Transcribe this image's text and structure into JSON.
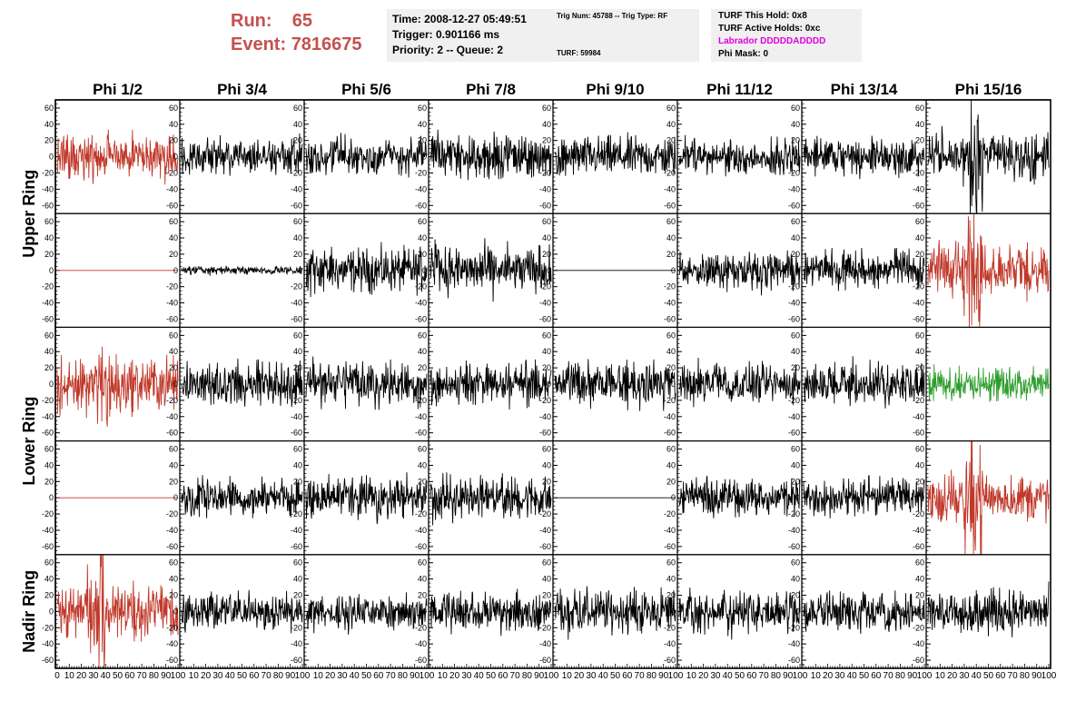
{
  "header": {
    "run_label": "Run:",
    "run_value": "65",
    "event_label": "Event:",
    "event_value": "7816675",
    "accent_color": "#c4504f"
  },
  "info": {
    "time": "Time: 2008-12-27 05:49:51",
    "trigger": "Trigger: 0.901166 ms",
    "priority": "Priority: 2 -- Queue: 2",
    "trig_num": "Trig Num: 45788 -- Trig Type: RF",
    "turf": "TURF: 59984",
    "turf_this_hold": "TURF This Hold: 0x8",
    "turf_active_holds": "TURF Active Holds: 0xc",
    "labrador": "Labrador DDDDDADDDD",
    "phi_mask": "Phi Mask: 0"
  },
  "chart_data": {
    "type": "line",
    "columns": [
      "Phi 1/2",
      "Phi 3/4",
      "Phi 5/6",
      "Phi 7/8",
      "Phi 9/10",
      "Phi 11/12",
      "Phi 13/14",
      "Phi 15/16"
    ],
    "ring_labels": [
      "Upper Ring",
      "Lower Ring",
      "Nadir Ring"
    ],
    "ylim": [
      -70,
      70
    ],
    "xlim": [
      0,
      100
    ],
    "y_ticks": [
      -60,
      -40,
      -20,
      0,
      20,
      40,
      60
    ],
    "x_ticks": [
      0,
      10,
      20,
      30,
      40,
      50,
      60,
      70,
      80,
      90,
      100
    ],
    "colors": {
      "red": "#c0392b",
      "green": "#2e9d2e",
      "black": "#000000"
    },
    "rows": [
      {
        "ring": "Upper Ring",
        "panels": [
          {
            "color": "red",
            "amp": 14,
            "seed": 11
          },
          {
            "color": "black",
            "amp": 11,
            "seed": 12
          },
          {
            "color": "black",
            "amp": 11,
            "seed": 13
          },
          {
            "color": "black",
            "amp": 13,
            "seed": 14
          },
          {
            "color": "black",
            "amp": 12,
            "seed": 15
          },
          {
            "color": "black",
            "amp": 11,
            "seed": 16
          },
          {
            "color": "black",
            "amp": 11,
            "seed": 17
          },
          {
            "color": "black",
            "amp": 15,
            "seed": 18,
            "burst": [
              35,
              45,
              2.2
            ]
          }
        ]
      },
      {
        "ring": "Upper Ring",
        "panels": [
          {
            "color": "red",
            "amp": 0,
            "seed": 21,
            "flat": true
          },
          {
            "color": "black",
            "amp": 2.5,
            "seed": 22
          },
          {
            "color": "black",
            "amp": 13,
            "seed": 23
          },
          {
            "color": "black",
            "amp": 14,
            "seed": 24
          },
          {
            "color": "black",
            "amp": 0,
            "seed": 25,
            "flat": true
          },
          {
            "color": "black",
            "amp": 11,
            "seed": 26
          },
          {
            "color": "black",
            "amp": 11,
            "seed": 27
          },
          {
            "color": "red",
            "amp": 15,
            "seed": 28,
            "burst": [
              30,
              45,
              2.5
            ]
          }
        ]
      },
      {
        "ring": "Lower Ring",
        "panels": [
          {
            "color": "red",
            "amp": 16,
            "seed": 31,
            "burst": [
              30,
              45,
              1.6
            ]
          },
          {
            "color": "black",
            "amp": 13,
            "seed": 32
          },
          {
            "color": "black",
            "amp": 13,
            "seed": 33
          },
          {
            "color": "black",
            "amp": 12,
            "seed": 34
          },
          {
            "color": "black",
            "amp": 13,
            "seed": 35
          },
          {
            "color": "black",
            "amp": 11,
            "seed": 36
          },
          {
            "color": "black",
            "amp": 12,
            "seed": 37
          },
          {
            "color": "green",
            "amp": 10,
            "seed": 38
          }
        ]
      },
      {
        "ring": "Lower Ring",
        "panels": [
          {
            "color": "red",
            "amp": 0,
            "seed": 41,
            "flat": true
          },
          {
            "color": "black",
            "amp": 11,
            "seed": 42
          },
          {
            "color": "black",
            "amp": 12,
            "seed": 43
          },
          {
            "color": "black",
            "amp": 13,
            "seed": 44
          },
          {
            "color": "black",
            "amp": 0,
            "seed": 45,
            "flat": true
          },
          {
            "color": "black",
            "amp": 11,
            "seed": 46
          },
          {
            "color": "black",
            "amp": 11,
            "seed": 47
          },
          {
            "color": "red",
            "amp": 14,
            "seed": 48,
            "burst": [
              30,
              45,
              2.6
            ]
          }
        ]
      },
      {
        "ring": "Nadir Ring",
        "panels": [
          {
            "color": "red",
            "amp": 15,
            "seed": 51,
            "burst": [
              25,
              40,
              2.5
            ]
          },
          {
            "color": "black",
            "amp": 11,
            "seed": 52
          },
          {
            "color": "black",
            "amp": 11,
            "seed": 53
          },
          {
            "color": "black",
            "amp": 12,
            "seed": 54
          },
          {
            "color": "black",
            "amp": 13,
            "seed": 55
          },
          {
            "color": "black",
            "amp": 12,
            "seed": 56
          },
          {
            "color": "black",
            "amp": 12,
            "seed": 57
          },
          {
            "color": "black",
            "amp": 13,
            "seed": 58
          }
        ]
      }
    ]
  }
}
